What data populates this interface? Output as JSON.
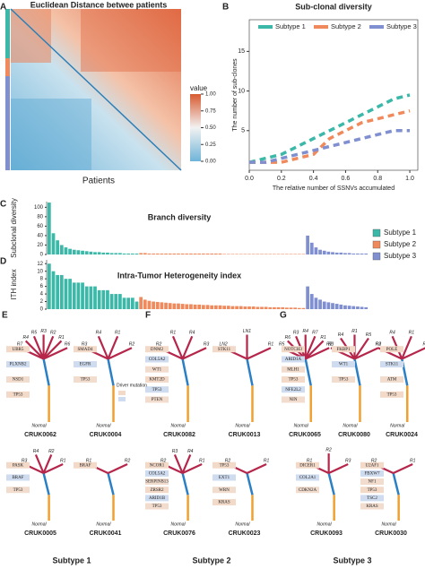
{
  "figure": {
    "panel_letters": [
      "A",
      "B",
      "C",
      "D",
      "E",
      "F",
      "G"
    ],
    "heatmap": {
      "title": "Euclidean Distance betwee patients",
      "xlabel": "Patients",
      "colorbar_title": "value",
      "colorbar_ticks": [
        {
          "value": 1,
          "label": "1.00"
        },
        0.75,
        {
          "value": 0.5,
          "label": "0.50"
        },
        0.25,
        {
          "value": 0,
          "label": "0.00"
        }
      ]
    },
    "driver_legend": "Driver mutation",
    "normal_label": "Normal",
    "subtype_labels": [
      "Subtype 1",
      "Subtype 2",
      "Subtype 3"
    ],
    "trees": [
      {
        "name": "CRUK0062",
        "genes": [
          "UBR5",
          "PLXNB2",
          "NSD1",
          "TP53"
        ],
        "regions": [
          "R7",
          "R4",
          "R5",
          "R3",
          "R2",
          "R1",
          "R6"
        ]
      },
      {
        "name": "CRUK0004",
        "genes": [
          "SMAD4",
          "EGFR",
          "TP53"
        ],
        "regions": [
          "R3",
          "R4",
          "R1",
          "R2"
        ]
      },
      {
        "name": "CRUK0005",
        "genes": [
          "PASK",
          "BRAF",
          "TP53"
        ],
        "regions": [
          "R3",
          "R4",
          "R2",
          "R1"
        ]
      },
      {
        "name": "CRUK0041",
        "genes": [
          "BRAF"
        ],
        "regions": [
          "R1",
          "R2"
        ]
      },
      {
        "name": "CRUK0082",
        "genes": [
          "DNM2",
          "COL5A2",
          "WT1",
          "KMT2D",
          "TP53",
          "PTEN"
        ],
        "regions": [
          "R2",
          "R1",
          "R4",
          "R3"
        ]
      },
      {
        "name": "CRUK0013",
        "genes": [
          "STK11"
        ],
        "regions": [
          "LN2",
          "LN1",
          "R1"
        ]
      },
      {
        "name": "CRUK0076",
        "genes": [
          "NCOR1",
          "COL5A2",
          "SERPINB13",
          "ZRSR2",
          "ARID1B",
          "TP53"
        ],
        "regions": [
          "R2",
          "R3",
          "R4",
          "R1"
        ]
      },
      {
        "name": "CRUK0023",
        "genes": [
          "TP53",
          "EXT1",
          "WRN",
          "KRAS"
        ],
        "regions": [
          "R2",
          "R1"
        ]
      },
      {
        "name": "CRUK0065",
        "genes": [
          "NOTCH3",
          "ARID1A",
          "MLH1",
          "TP53",
          "NFE2L2",
          "NIN"
        ],
        "regions": [
          "R5",
          "R6",
          "R3",
          "R4",
          "R7",
          "R1",
          "R2"
        ]
      },
      {
        "name": "CRUK0080",
        "genes": [
          "FKBP1",
          "WT1",
          "TP53"
        ],
        "regions": [
          "R3",
          "R4",
          "R1",
          "R5",
          "R2"
        ]
      },
      {
        "name": "CRUK0024",
        "genes": [
          "POLE",
          "STK11",
          "ATM",
          "TP53"
        ],
        "regions": [
          "R3",
          "R4",
          "R1",
          "R2"
        ]
      },
      {
        "name": "CRUK0093",
        "genes": [
          "DICER1",
          "COL2A1",
          "CDKN2A"
        ],
        "regions": [
          "R1",
          "R2",
          "R3"
        ]
      },
      {
        "name": "CRUK0030",
        "genes": [
          "U2AF1",
          "FBXW7",
          "NF1",
          "TP53",
          "TSC2",
          "KRAS"
        ],
        "regions": [
          "R2",
          "R1"
        ]
      }
    ]
  },
  "chart_data": [
    {
      "type": "line",
      "title": "Sub-clonal diversity",
      "xlabel": "The relative number of SSNVs accumulated",
      "ylabel": "The number of sub-clones",
      "x": [
        0,
        0.1,
        0.2,
        0.3,
        0.4,
        0.5,
        0.6,
        0.7,
        0.8,
        0.9,
        1
      ],
      "xlim": [
        0,
        1.05
      ],
      "xticks": [
        {
          "value": 0,
          "label": "0.0"
        },
        0.2,
        0.4,
        0.6,
        0.8,
        {
          "value": 1,
          "label": "1.0"
        }
      ],
      "ylim": [
        0,
        19
      ],
      "yticks": [
        5,
        10,
        15
      ],
      "series": [
        {
          "name": "Subtype 1",
          "color": "#3bb8a8",
          "values": [
            1,
            1.5,
            2,
            3,
            4,
            5,
            6,
            7,
            8,
            9,
            9.5
          ]
        },
        {
          "name": "Subtype 2",
          "color": "#f08a5d",
          "values": [
            1,
            1,
            1,
            1.5,
            2,
            4,
            5,
            6,
            6.5,
            7,
            7.5
          ]
        },
        {
          "name": "Subtype 3",
          "color": "#7f8fd0",
          "values": [
            1,
            1,
            1.5,
            2,
            2.5,
            3,
            3.5,
            4,
            4.5,
            5,
            5
          ]
        }
      ]
    },
    {
      "type": "bar",
      "title": "Branch diversity",
      "ylabel": "Subclonal diversity",
      "ylim": [
        0,
        112
      ],
      "yticks": [
        0,
        20,
        40,
        60,
        80,
        100
      ],
      "series": [
        {
          "name": "Subtype 1",
          "color": "#3bb8a8",
          "values": [
            110,
            45,
            30,
            20,
            15,
            12,
            10,
            9,
            8,
            7,
            6,
            5,
            5,
            4,
            4,
            3,
            3,
            3,
            2,
            2,
            2,
            2
          ]
        },
        {
          "name": "Subtype 2",
          "color": "#f08a5d",
          "values": [
            3,
            3,
            2,
            2,
            2,
            2,
            2,
            2,
            2,
            2,
            2,
            2,
            2,
            2,
            2,
            2,
            2,
            2,
            2,
            2,
            1,
            1,
            1,
            1,
            1,
            1,
            1,
            1,
            1,
            1,
            1,
            1,
            1,
            1,
            1,
            1,
            1,
            1,
            1,
            1
          ]
        },
        {
          "name": "Subtype 3",
          "color": "#7f8fd0",
          "values": [
            40,
            25,
            15,
            10,
            8,
            6,
            5,
            4,
            4,
            3,
            3,
            2,
            2,
            2,
            2
          ]
        }
      ]
    },
    {
      "type": "bar",
      "title": "Intra-Tumor Heterogeneity index",
      "ylabel": "ITH index",
      "ylim": [
        0,
        13
      ],
      "yticks": [
        0,
        2,
        4,
        6,
        8,
        10,
        12
      ],
      "series": [
        {
          "name": "Subtype 1",
          "color": "#3bb8a8",
          "values": [
            12,
            10,
            9,
            9,
            8,
            8,
            7,
            7,
            7,
            6,
            6,
            6,
            5,
            5,
            5,
            4,
            4,
            4,
            3,
            3,
            3,
            2
          ]
        },
        {
          "name": "Subtype 2",
          "color": "#f08a5d",
          "values": [
            3.2,
            2.5,
            2.2,
            2,
            1.9,
            1.8,
            1.7,
            1.6,
            1.5,
            1.5,
            1.4,
            1.3,
            1.3,
            1.2,
            1.2,
            1.1,
            1.1,
            1,
            1,
            1,
            0.9,
            0.9,
            0.8,
            0.8,
            0.8,
            0.7,
            0.7,
            0.7,
            0.6,
            0.6,
            0.6,
            0.5,
            0.5,
            0.5,
            0.5,
            0.4,
            0.4,
            0.4,
            0.3,
            0.3
          ]
        },
        {
          "name": "Subtype 3",
          "color": "#7f8fd0",
          "values": [
            6,
            4,
            3,
            2.5,
            2,
            1.8,
            1.6,
            1.4,
            1.2,
            1,
            0.9,
            0.8,
            0.7,
            0.6,
            0.5
          ]
        }
      ]
    }
  ]
}
